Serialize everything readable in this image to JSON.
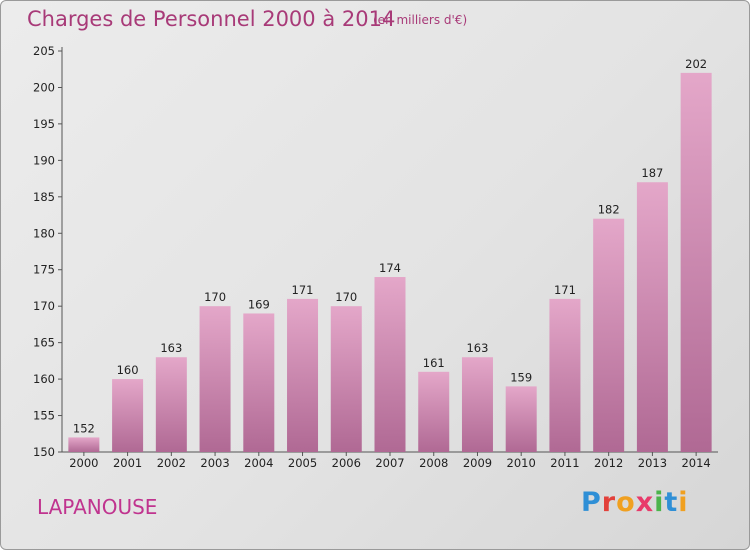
{
  "header": {
    "title": "Charges de Personnel 2000 à 2014",
    "subtitle": "(en milliers d'€)"
  },
  "footer": {
    "commune": "LAPANOUSE",
    "logo": "Proxiti"
  },
  "colors": {
    "title": "#a83a78",
    "commune": "#c0348f",
    "bar_top": "#e4a7c9",
    "bar_bottom": "#b06994"
  },
  "chart_data": {
    "type": "bar",
    "categories": [
      "2000",
      "2001",
      "2002",
      "2003",
      "2004",
      "2005",
      "2006",
      "2007",
      "2008",
      "2009",
      "2010",
      "2011",
      "2012",
      "2013",
      "2014"
    ],
    "values": [
      152,
      160,
      163,
      170,
      169,
      171,
      170,
      174,
      161,
      163,
      159,
      171,
      182,
      187,
      202
    ],
    "title": "Charges de Personnel 2000 à 2014",
    "subtitle": "(en milliers d'€)",
    "xlabel": "",
    "ylabel": "",
    "ylim": [
      150,
      205
    ],
    "yticks": [
      150,
      155,
      160,
      165,
      170,
      175,
      180,
      185,
      190,
      195,
      200,
      205
    ],
    "grid": false,
    "legend": "none"
  }
}
